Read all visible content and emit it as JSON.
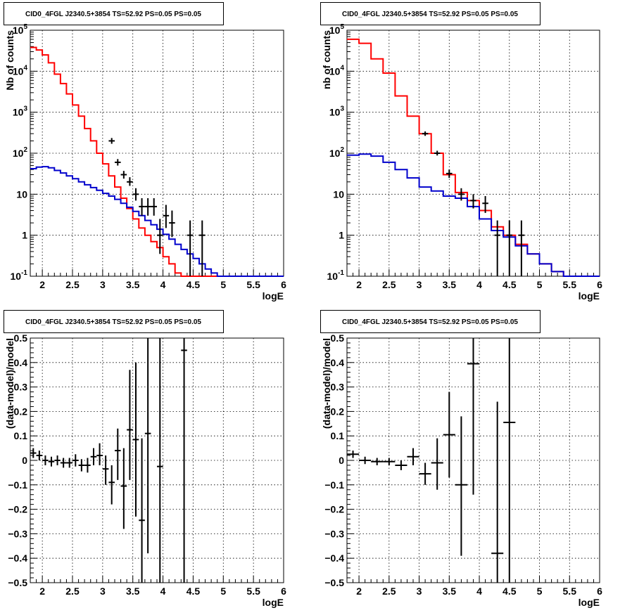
{
  "chart_data": [
    {
      "type": "step",
      "title": "CID0_4FGL J2340.5+3854 TS=52.92 PS=0.05 PS=0.05",
      "xlabel": "logE",
      "ylabel": "Nb of counts",
      "xlim": [
        1.8,
        6.0
      ],
      "ylim": [
        0.1,
        100000
      ],
      "yscale": "log",
      "grid": true,
      "x_ticks": [
        "2",
        "2.5",
        "3",
        "3.5",
        "4",
        "4.5",
        "5",
        "5.5",
        "6"
      ],
      "y_ticks": [
        "10^-1",
        "1",
        "10",
        "10^2",
        "10^3",
        "10^4",
        "10^5"
      ],
      "bin_edges": [
        1.8,
        1.9,
        2.0,
        2.1,
        2.2,
        2.3,
        2.4,
        2.5,
        2.6,
        2.7,
        2.8,
        2.9,
        3.0,
        3.1,
        3.2,
        3.3,
        3.4,
        3.5,
        3.6,
        3.7,
        3.8,
        3.9,
        4.0,
        4.1,
        4.2,
        4.3,
        4.4,
        4.5,
        4.6,
        4.7,
        4.8,
        4.9,
        5.0,
        5.1,
        5.2,
        5.3,
        5.4,
        5.5,
        5.6,
        5.7,
        5.8,
        5.9,
        6.0
      ],
      "series": [
        {
          "color": "#ff0000",
          "values": [
            38000,
            33000,
            25000,
            16000,
            8500,
            5000,
            2800,
            1500,
            800,
            400,
            200,
            100,
            55,
            28,
            15,
            8,
            4.5,
            2.5,
            1.5,
            1.0,
            0.7,
            0.5,
            0.3,
            0.2,
            0.12,
            0.1,
            0.1,
            0.1,
            0.1,
            0.1,
            0.1,
            0.1,
            0.1,
            0.1,
            0.1,
            0.1,
            0.1,
            0.1,
            0.1,
            0.1,
            0.1,
            0.1
          ]
        },
        {
          "color": "#0000cc",
          "values": [
            42,
            46,
            47,
            44,
            38,
            33,
            28,
            24,
            20,
            17,
            14.5,
            12.5,
            10.5,
            9,
            7.5,
            6,
            4.8,
            3.8,
            3,
            2.3,
            1.8,
            1.4,
            1.05,
            0.8,
            0.6,
            0.45,
            0.35,
            0.27,
            0.2,
            0.15,
            0.12,
            0.1,
            0.1,
            0.1,
            0.1,
            0.1,
            0.1,
            0.1,
            0.1,
            0.1,
            0.1,
            0.1
          ]
        }
      ],
      "points": [
        {
          "x": 3.15,
          "y": 200,
          "ylo": 170,
          "yhi": 235
        },
        {
          "x": 3.25,
          "y": 60,
          "ylo": 50,
          "yhi": 72
        },
        {
          "x": 3.35,
          "y": 30,
          "ylo": 24,
          "yhi": 37
        },
        {
          "x": 3.45,
          "y": 20,
          "ylo": 16,
          "yhi": 26
        },
        {
          "x": 3.55,
          "y": 10,
          "ylo": 7,
          "yhi": 14
        },
        {
          "x": 3.65,
          "y": 5,
          "ylo": 3,
          "yhi": 8
        },
        {
          "x": 3.75,
          "y": 5,
          "ylo": 3,
          "yhi": 8
        },
        {
          "x": 3.85,
          "y": 5,
          "ylo": 3,
          "yhi": 8
        },
        {
          "x": 3.95,
          "y": 1,
          "ylo": 0.35,
          "yhi": 2.5
        },
        {
          "x": 4.05,
          "y": 3,
          "ylo": 1.5,
          "yhi": 5.5
        },
        {
          "x": 4.15,
          "y": 2,
          "ylo": 0.9,
          "yhi": 4
        },
        {
          "x": 4.45,
          "y": 1,
          "ylo": 0.1,
          "yhi": 2.3
        },
        {
          "x": 4.65,
          "y": 1,
          "ylo": 0.1,
          "yhi": 2.3
        }
      ]
    },
    {
      "type": "step",
      "title": "CID0_4FGL J2340.5+3854 TS=52.92 PS=0.05 PS=0.05",
      "xlabel": "logE",
      "ylabel": "nb of counts",
      "xlim": [
        1.8,
        6.0
      ],
      "ylim": [
        0.1,
        100000
      ],
      "yscale": "log",
      "grid": true,
      "x_ticks": [
        "2",
        "2.5",
        "3",
        "3.5",
        "4",
        "4.5",
        "5",
        "5.5",
        "6"
      ],
      "y_ticks": [
        "10^-1",
        "1",
        "10",
        "10^2",
        "10^3",
        "10^4",
        "10^5"
      ],
      "bin_edges": [
        1.8,
        2.0,
        2.2,
        2.4,
        2.6,
        2.8,
        3.0,
        3.2,
        3.4,
        3.6,
        3.8,
        4.0,
        4.2,
        4.4,
        4.6,
        4.8,
        5.0,
        5.2,
        5.4,
        5.6,
        5.8,
        6.0
      ],
      "series": [
        {
          "color": "#ff0000",
          "values": [
            60000,
            48000,
            20000,
            9000,
            2500,
            800,
            300,
            100,
            30,
            11,
            7,
            4,
            1.6,
            1.0,
            0.6,
            0.35,
            0.2,
            0.13,
            0.1,
            0.1,
            0.1
          ]
        },
        {
          "color": "#0000cc",
          "values": [
            90,
            95,
            85,
            60,
            40,
            25,
            15,
            12,
            9,
            8,
            5,
            2.5,
            1.3,
            0.9,
            0.55,
            0.35,
            0.2,
            0.13,
            0.1,
            0.1,
            0.1
          ]
        }
      ],
      "points": [
        {
          "x": 3.1,
          "y": 300,
          "ylo": 265,
          "yhi": 340
        },
        {
          "x": 3.3,
          "y": 100,
          "ylo": 88,
          "yhi": 115
        },
        {
          "x": 3.5,
          "y": 32,
          "ylo": 25,
          "yhi": 40
        },
        {
          "x": 3.7,
          "y": 10,
          "ylo": 7,
          "yhi": 14
        },
        {
          "x": 3.9,
          "y": 7,
          "ylo": 4.5,
          "yhi": 10
        },
        {
          "x": 4.1,
          "y": 6,
          "ylo": 3.5,
          "yhi": 9
        },
        {
          "x": 4.3,
          "y": 1,
          "ylo": 0.1,
          "yhi": 2.3
        },
        {
          "x": 4.5,
          "y": 1,
          "ylo": 0.1,
          "yhi": 2.3
        },
        {
          "x": 4.7,
          "y": 1,
          "ylo": 0.1,
          "yhi": 2.3
        }
      ]
    },
    {
      "type": "errorbar",
      "title": "CID0_4FGL J2340.5+3854 TS=52.92 PS=0.05 PS=0.05",
      "xlabel": "logE",
      "ylabel": "(data-model)/model",
      "xlim": [
        1.8,
        6.0
      ],
      "ylim": [
        -0.5,
        0.5
      ],
      "grid": true,
      "x_ticks": [
        "2",
        "2.5",
        "3",
        "3.5",
        "4",
        "4.5",
        "5",
        "5.5",
        "6"
      ],
      "y_ticks": [
        "-0.5",
        "-0.4",
        "-0.3",
        "-0.2",
        "-0.1",
        "0",
        "0.1",
        "0.2",
        "0.3",
        "0.4",
        "0.5"
      ],
      "points": [
        {
          "x": 1.85,
          "xw": 0.05,
          "y": 0.03,
          "ylo": 0.01,
          "yhi": 0.05
        },
        {
          "x": 1.95,
          "xw": 0.05,
          "y": 0.02,
          "ylo": 0.0,
          "yhi": 0.04
        },
        {
          "x": 2.05,
          "xw": 0.05,
          "y": 0.0,
          "ylo": -0.02,
          "yhi": 0.02
        },
        {
          "x": 2.15,
          "xw": 0.05,
          "y": -0.005,
          "ylo": -0.025,
          "yhi": 0.015
        },
        {
          "x": 2.25,
          "xw": 0.05,
          "y": 0.0,
          "ylo": -0.02,
          "yhi": 0.02
        },
        {
          "x": 2.35,
          "xw": 0.05,
          "y": -0.01,
          "ylo": -0.03,
          "yhi": 0.01
        },
        {
          "x": 2.45,
          "xw": 0.05,
          "y": -0.01,
          "ylo": -0.03,
          "yhi": 0.01
        },
        {
          "x": 2.55,
          "xw": 0.05,
          "y": 0.0,
          "ylo": -0.025,
          "yhi": 0.025
        },
        {
          "x": 2.65,
          "xw": 0.05,
          "y": -0.02,
          "ylo": -0.045,
          "yhi": 0.005
        },
        {
          "x": 2.75,
          "xw": 0.05,
          "y": -0.02,
          "ylo": -0.05,
          "yhi": 0.01
        },
        {
          "x": 2.85,
          "xw": 0.05,
          "y": 0.015,
          "ylo": -0.02,
          "yhi": 0.05
        },
        {
          "x": 2.95,
          "xw": 0.05,
          "y": 0.02,
          "ylo": -0.02,
          "yhi": 0.07
        },
        {
          "x": 3.05,
          "xw": 0.05,
          "y": -0.035,
          "ylo": -0.1,
          "yhi": 0.02
        },
        {
          "x": 3.15,
          "xw": 0.05,
          "y": -0.09,
          "ylo": -0.18,
          "yhi": -0.02
        },
        {
          "x": 3.25,
          "xw": 0.05,
          "y": 0.04,
          "ylo": -0.08,
          "yhi": 0.13
        },
        {
          "x": 3.35,
          "xw": 0.05,
          "y": -0.105,
          "ylo": -0.28,
          "yhi": 0.05
        },
        {
          "x": 3.45,
          "xw": 0.05,
          "y": 0.125,
          "ylo": -0.08,
          "yhi": 0.37
        },
        {
          "x": 3.55,
          "xw": 0.05,
          "y": 0.085,
          "ylo": -0.23,
          "yhi": 0.4
        },
        {
          "x": 3.65,
          "xw": 0.05,
          "y": -0.245,
          "ylo": -0.5,
          "yhi": 0.09
        },
        {
          "x": 3.75,
          "xw": 0.05,
          "y": 0.11,
          "ylo": -0.38,
          "yhi": 0.5
        },
        {
          "x": 3.95,
          "xw": 0.05,
          "y": -0.025,
          "ylo": -0.5,
          "yhi": 0.5
        },
        {
          "x": 4.35,
          "xw": 0.05,
          "y": 0.45,
          "ylo": -0.5,
          "yhi": 0.5
        }
      ]
    },
    {
      "type": "errorbar",
      "title": "CID0_4FGL J2340.5+3854 TS=52.92 PS=0.05 PS=0.05",
      "xlabel": "logE",
      "ylabel": "(data-model)/model",
      "xlim": [
        1.8,
        6.0
      ],
      "ylim": [
        -0.5,
        0.5
      ],
      "grid": true,
      "x_ticks": [
        "2",
        "2.5",
        "3",
        "3.5",
        "4",
        "4.5",
        "5",
        "5.5",
        "6"
      ],
      "y_ticks": [
        "-0.5",
        "-0.4",
        "-0.3",
        "-0.2",
        "-0.1",
        "0",
        "0.1",
        "0.2",
        "0.3",
        "0.4",
        "0.5"
      ],
      "points": [
        {
          "x": 1.9,
          "xw": 0.1,
          "y": 0.025,
          "ylo": 0.01,
          "yhi": 0.04
        },
        {
          "x": 2.1,
          "xw": 0.1,
          "y": 0.0,
          "ylo": -0.015,
          "yhi": 0.015
        },
        {
          "x": 2.3,
          "xw": 0.1,
          "y": -0.005,
          "ylo": -0.02,
          "yhi": 0.01
        },
        {
          "x": 2.5,
          "xw": 0.1,
          "y": -0.005,
          "ylo": -0.02,
          "yhi": 0.01
        },
        {
          "x": 2.7,
          "xw": 0.1,
          "y": -0.02,
          "ylo": -0.04,
          "yhi": 0.0
        },
        {
          "x": 2.9,
          "xw": 0.1,
          "y": 0.015,
          "ylo": -0.02,
          "yhi": 0.05
        },
        {
          "x": 3.1,
          "xw": 0.1,
          "y": -0.055,
          "ylo": -0.1,
          "yhi": -0.01
        },
        {
          "x": 3.3,
          "xw": 0.1,
          "y": -0.01,
          "ylo": -0.12,
          "yhi": 0.09
        },
        {
          "x": 3.5,
          "xw": 0.1,
          "y": 0.105,
          "ylo": -0.07,
          "yhi": 0.28
        },
        {
          "x": 3.7,
          "xw": 0.1,
          "y": -0.1,
          "ylo": -0.39,
          "yhi": 0.18
        },
        {
          "x": 3.9,
          "xw": 0.1,
          "y": 0.395,
          "ylo": -0.14,
          "yhi": 0.5
        },
        {
          "x": 4.3,
          "xw": 0.1,
          "y": -0.38,
          "ylo": -0.5,
          "yhi": 0.24
        },
        {
          "x": 4.5,
          "xw": 0.1,
          "y": 0.155,
          "ylo": -0.5,
          "yhi": 0.5
        }
      ]
    }
  ]
}
